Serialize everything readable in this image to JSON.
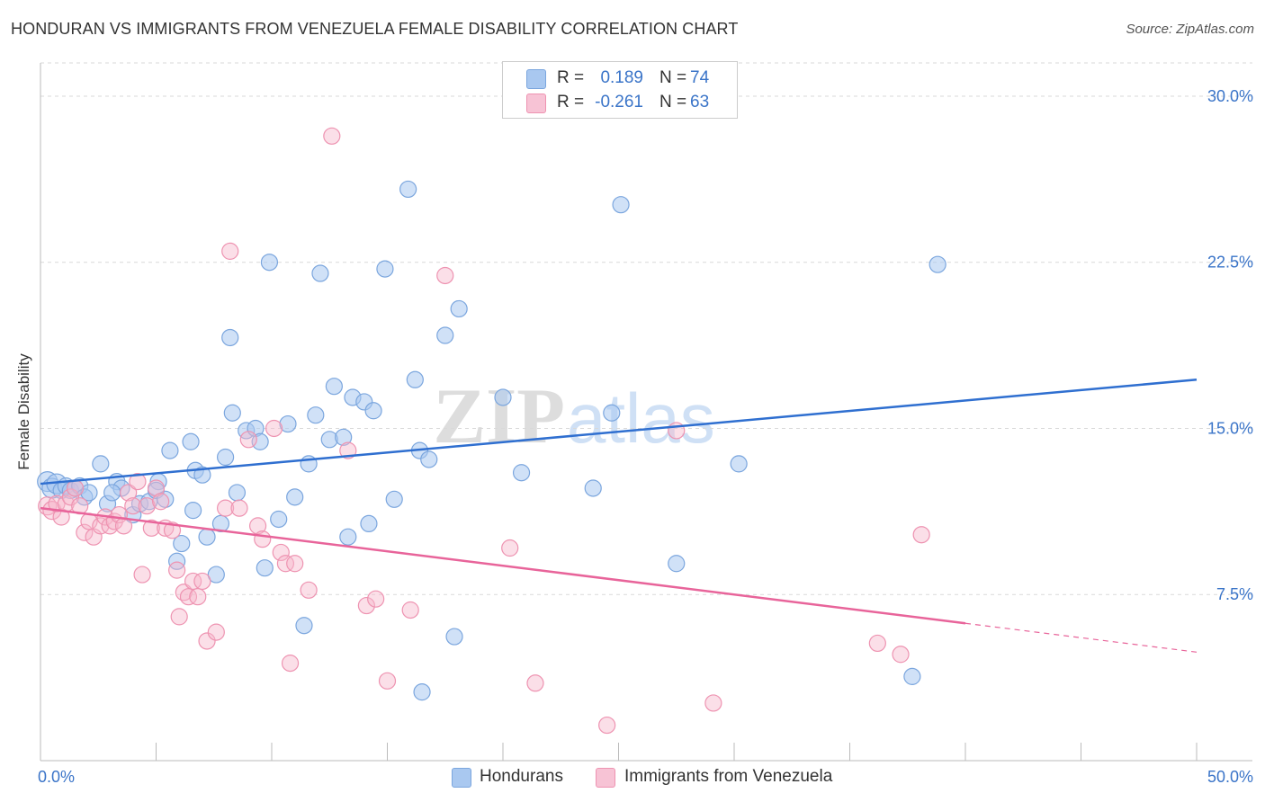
{
  "title": "HONDURAN VS IMMIGRANTS FROM VENEZUELA FEMALE DISABILITY CORRELATION CHART",
  "source": "Source: ZipAtlas.com",
  "watermark": {
    "part1": "ZIP",
    "part2": "atlas"
  },
  "colors": {
    "blue_fill": "#a9c8f0",
    "blue_stroke": "#7ba6de",
    "blue_line": "#2f6fd0",
    "pink_fill": "#f7b8cd",
    "pink_stroke": "#ee93b1",
    "pink_line": "#e8649a",
    "tick_text": "#3a74c8",
    "grid": "#d9d9d9"
  },
  "legend_top": {
    "rows": [
      {
        "r_label": "R =",
        "r_value": "0.189",
        "n_label": "N =",
        "n_value": "74"
      },
      {
        "r_label": "R =",
        "r_value": "-0.261",
        "n_label": "N =",
        "n_value": "63"
      }
    ]
  },
  "legend_bottom": {
    "items": [
      {
        "label": "Hondurans"
      },
      {
        "label": "Immigrants from Venezuela"
      }
    ]
  },
  "chart_data": {
    "type": "scatter",
    "title": "HONDURAN VS IMMIGRANTS FROM VENEZUELA FEMALE DISABILITY CORRELATION CHART",
    "xlabel": "",
    "ylabel": "Female Disability",
    "xlim": [
      0,
      50
    ],
    "ylim": [
      0,
      31.5
    ],
    "x_tick_labels": [
      {
        "value": 0,
        "label": "0.0%"
      },
      {
        "value": 50,
        "label": "50.0%"
      }
    ],
    "y_tick_labels": [
      {
        "value": 7.5,
        "label": "7.5%"
      },
      {
        "value": 15,
        "label": "15.0%"
      },
      {
        "value": 22.5,
        "label": "22.5%"
      },
      {
        "value": 30,
        "label": "30.0%"
      }
    ],
    "grid": "horizontal dashed",
    "legend_placement": "top-center and bottom",
    "series": [
      {
        "name": "Hondurans",
        "r": 0.189,
        "n": 74,
        "trend": {
          "x": [
            0,
            50
          ],
          "y": [
            12.5,
            17.2
          ]
        },
        "points": [
          [
            0.3,
            12.6
          ],
          [
            0.5,
            12.3
          ],
          [
            0.7,
            12.5
          ],
          [
            0.9,
            12.2
          ],
          [
            1.1,
            12.4
          ],
          [
            1.3,
            12.2
          ],
          [
            1.5,
            12.3
          ],
          [
            1.7,
            12.4
          ],
          [
            1.9,
            11.9
          ],
          [
            2.1,
            12.1
          ],
          [
            2.6,
            13.4
          ],
          [
            2.9,
            11.6
          ],
          [
            3.3,
            12.6
          ],
          [
            3.5,
            12.3
          ],
          [
            3.1,
            12.1
          ],
          [
            4.0,
            11.1
          ],
          [
            4.3,
            11.6
          ],
          [
            4.7,
            11.7
          ],
          [
            5.1,
            12.6
          ],
          [
            5.0,
            12.2
          ],
          [
            5.4,
            11.8
          ],
          [
            5.6,
            14.0
          ],
          [
            5.9,
            9.0
          ],
          [
            6.1,
            9.8
          ],
          [
            6.5,
            14.4
          ],
          [
            6.6,
            11.3
          ],
          [
            6.7,
            13.1
          ],
          [
            7.0,
            12.9
          ],
          [
            7.2,
            10.1
          ],
          [
            7.6,
            8.4
          ],
          [
            7.8,
            10.7
          ],
          [
            8.0,
            13.7
          ],
          [
            8.3,
            15.7
          ],
          [
            8.5,
            12.1
          ],
          [
            8.2,
            19.1
          ],
          [
            8.9,
            14.9
          ],
          [
            9.3,
            15.0
          ],
          [
            9.5,
            14.4
          ],
          [
            9.7,
            8.7
          ],
          [
            9.9,
            22.5
          ],
          [
            10.3,
            10.9
          ],
          [
            10.7,
            15.2
          ],
          [
            11.0,
            11.9
          ],
          [
            11.4,
            6.1
          ],
          [
            11.6,
            13.4
          ],
          [
            11.9,
            15.6
          ],
          [
            12.1,
            22.0
          ],
          [
            12.5,
            14.5
          ],
          [
            12.7,
            16.9
          ],
          [
            13.1,
            14.6
          ],
          [
            13.3,
            10.1
          ],
          [
            13.5,
            16.4
          ],
          [
            14.0,
            16.2
          ],
          [
            14.2,
            10.7
          ],
          [
            14.4,
            15.8
          ],
          [
            14.9,
            22.2
          ],
          [
            15.3,
            11.8
          ],
          [
            15.9,
            25.8
          ],
          [
            16.2,
            17.2
          ],
          [
            16.4,
            14.0
          ],
          [
            16.5,
            3.1
          ],
          [
            16.8,
            13.6
          ],
          [
            17.5,
            19.2
          ],
          [
            17.9,
            5.6
          ],
          [
            18.1,
            20.4
          ],
          [
            20.0,
            16.4
          ],
          [
            20.8,
            13.0
          ],
          [
            23.9,
            12.3
          ],
          [
            24.7,
            15.7
          ],
          [
            25.1,
            25.1
          ],
          [
            27.5,
            8.9
          ],
          [
            30.2,
            13.4
          ],
          [
            37.7,
            3.8
          ],
          [
            38.8,
            22.4
          ]
        ]
      },
      {
        "name": "Immigrants from Venezuela",
        "r": -0.261,
        "n": 63,
        "trend": {
          "x": [
            0,
            40
          ],
          "y": [
            11.4,
            6.2
          ]
        },
        "trend_dashed": {
          "x": [
            40,
            50
          ],
          "y": [
            6.2,
            4.9
          ]
        },
        "points": [
          [
            0.3,
            11.5
          ],
          [
            0.5,
            11.3
          ],
          [
            0.7,
            11.6
          ],
          [
            0.9,
            11.0
          ],
          [
            1.1,
            11.6
          ],
          [
            1.3,
            11.9
          ],
          [
            1.5,
            12.3
          ],
          [
            1.7,
            11.5
          ],
          [
            1.9,
            10.3
          ],
          [
            2.1,
            10.8
          ],
          [
            2.3,
            10.1
          ],
          [
            2.6,
            10.6
          ],
          [
            2.8,
            11.0
          ],
          [
            3.0,
            10.6
          ],
          [
            3.2,
            10.8
          ],
          [
            3.4,
            11.1
          ],
          [
            3.6,
            10.6
          ],
          [
            3.8,
            12.1
          ],
          [
            4.0,
            11.5
          ],
          [
            4.2,
            12.6
          ],
          [
            4.4,
            8.4
          ],
          [
            4.6,
            11.5
          ],
          [
            4.8,
            10.5
          ],
          [
            5.0,
            12.3
          ],
          [
            5.2,
            11.7
          ],
          [
            5.4,
            10.5
          ],
          [
            5.7,
            10.4
          ],
          [
            5.9,
            8.6
          ],
          [
            6.0,
            6.5
          ],
          [
            6.2,
            7.6
          ],
          [
            6.4,
            7.4
          ],
          [
            6.6,
            8.1
          ],
          [
            6.8,
            7.4
          ],
          [
            7.0,
            8.1
          ],
          [
            7.2,
            5.4
          ],
          [
            7.6,
            5.8
          ],
          [
            8.0,
            11.4
          ],
          [
            8.2,
            23.0
          ],
          [
            8.6,
            11.4
          ],
          [
            9.0,
            14.5
          ],
          [
            9.4,
            10.6
          ],
          [
            9.6,
            10.0
          ],
          [
            10.1,
            15.0
          ],
          [
            10.4,
            9.4
          ],
          [
            10.6,
            8.9
          ],
          [
            10.8,
            4.4
          ],
          [
            11.0,
            8.9
          ],
          [
            11.6,
            7.7
          ],
          [
            12.6,
            28.2
          ],
          [
            13.3,
            14.0
          ],
          [
            14.1,
            7.0
          ],
          [
            14.5,
            7.3
          ],
          [
            15.0,
            3.6
          ],
          [
            16.0,
            6.8
          ],
          [
            17.5,
            21.9
          ],
          [
            20.3,
            9.6
          ],
          [
            21.4,
            3.5
          ],
          [
            24.5,
            1.6
          ],
          [
            27.5,
            14.9
          ],
          [
            29.1,
            2.6
          ],
          [
            36.2,
            5.3
          ],
          [
            37.2,
            4.8
          ],
          [
            38.1,
            10.2
          ]
        ]
      }
    ]
  }
}
